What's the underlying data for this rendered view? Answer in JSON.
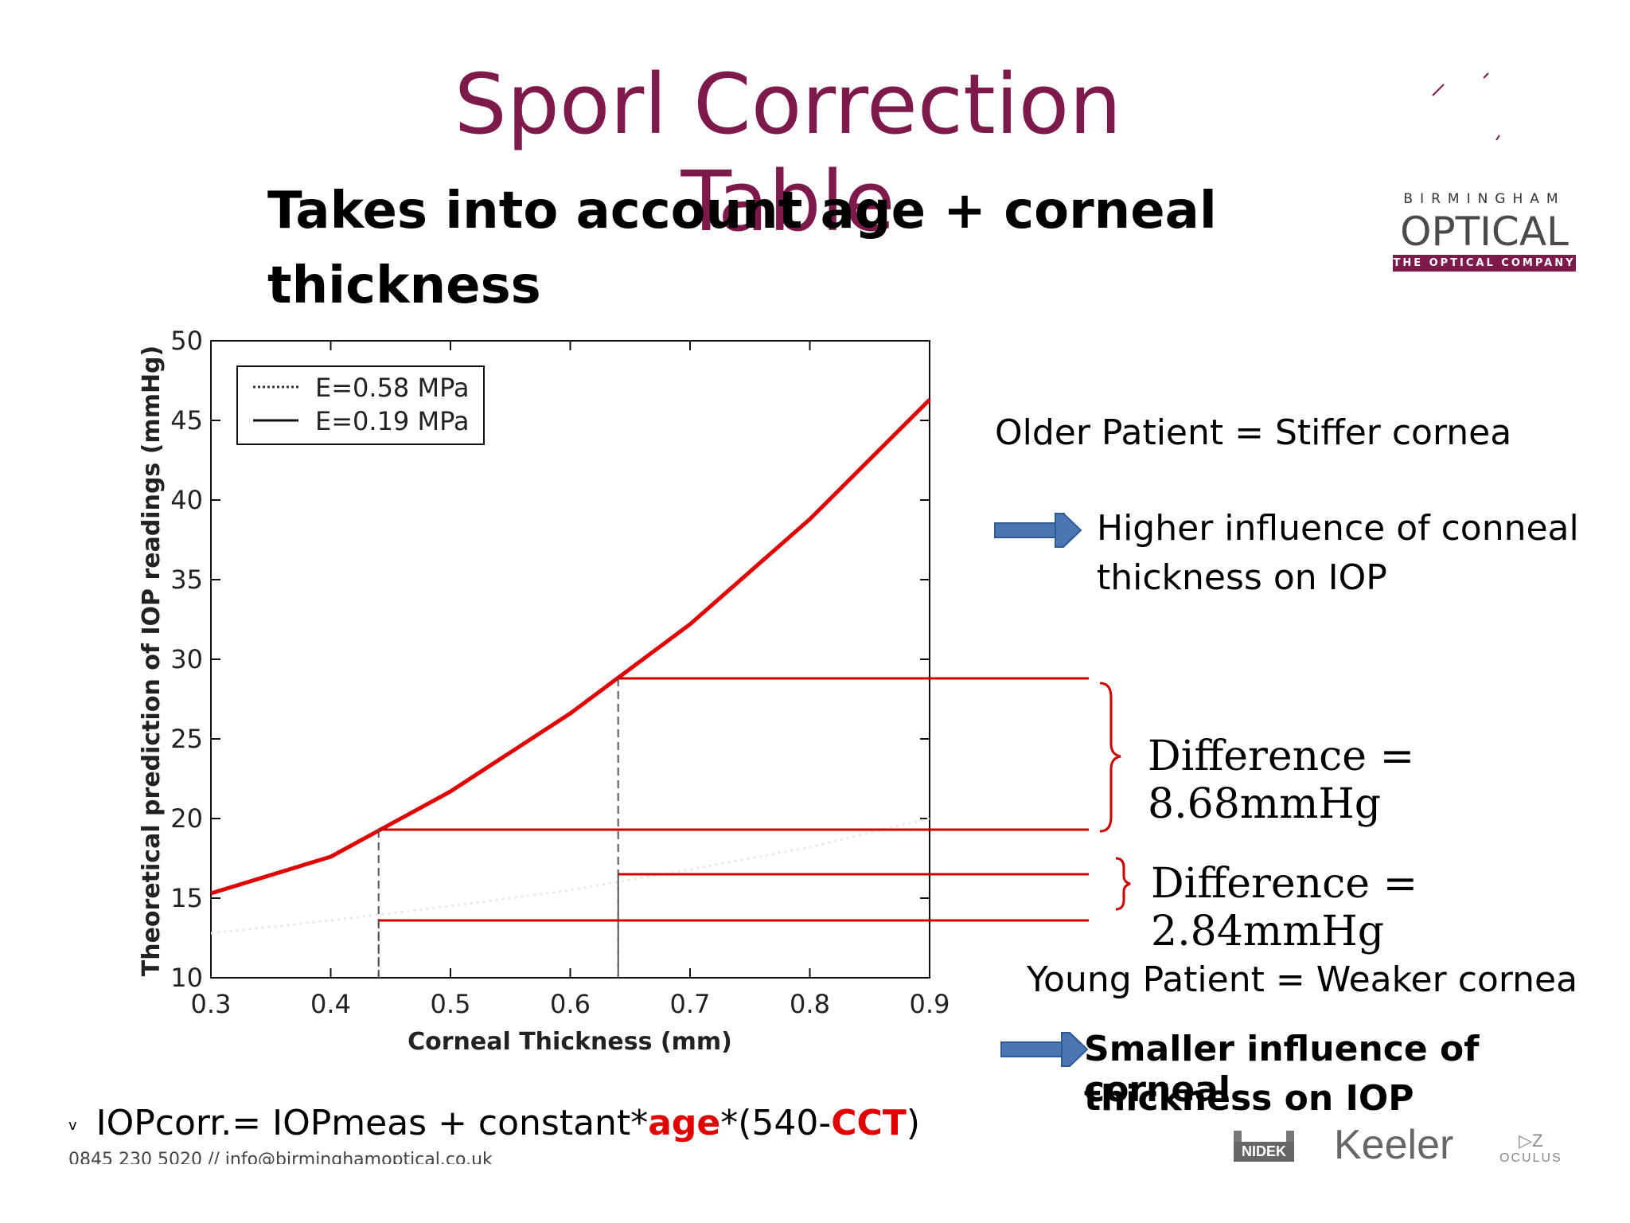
{
  "slide": {
    "title": "Sporl Correction Table",
    "subtitle_line1": "Takes into account age + corneal",
    "subtitle_line2": "thickness"
  },
  "logo": {
    "top": "BIRMINGHAM",
    "main": "OPTICAL",
    "tagline": "THE OPTICAL COMPANY"
  },
  "notes": {
    "older": "Older Patient = Stiffer cornea",
    "older_effect_line1": "Higher influence of conneal",
    "older_effect_line2": "thickness on IOP",
    "young": "Young Patient = Weaker cornea",
    "young_effect_line1": "Smaller influence of corneal",
    "young_effect_line2": "thickness  on IOP"
  },
  "differences": {
    "old": "Difference = 8.68mmHg",
    "young": "Difference = 2.84mmHg"
  },
  "formula": {
    "bullet": "v",
    "part1": "IOPcorr.= IOPmeas + constant*",
    "age": "age",
    "part2": "*(540-",
    "cct": "CCT",
    "part3": ")"
  },
  "footer": {
    "contact": "0845 230 5020 // info@birminghamoptical.co.uk",
    "brands": [
      "NIDEK",
      "Keeler",
      "OCULUS"
    ]
  },
  "colors": {
    "title": "#7d1a4b",
    "highlight": "#e00000",
    "arrow": "#4a77b4"
  },
  "chart_data": {
    "type": "line",
    "xlabel": "Corneal Thickness (mm)",
    "ylabel": "Theoretical prediction of IOP readings (mmHg)",
    "xlim": [
      0.3,
      0.9
    ],
    "ylim": [
      10,
      50
    ],
    "xticks": [
      0.3,
      0.4,
      0.5,
      0.6,
      0.7,
      0.8,
      0.9
    ],
    "yticks": [
      10,
      15,
      20,
      25,
      30,
      35,
      40,
      45,
      50
    ],
    "legend": [
      "E=0.58 MPa",
      "E=0.19 MPa"
    ],
    "legend_position": "top-left",
    "series": [
      {
        "name": "E=0.58 MPa",
        "x": [
          0.3,
          0.4,
          0.5,
          0.6,
          0.7,
          0.8,
          0.9
        ],
        "y": [
          15.3,
          17.6,
          21.7,
          26.6,
          32.2,
          38.8,
          46.3
        ]
      },
      {
        "name": "E=0.19 MPa",
        "x": [
          0.3,
          0.4,
          0.5,
          0.6,
          0.7,
          0.8,
          0.9
        ],
        "y": [
          12.8,
          13.6,
          14.5,
          15.5,
          16.8,
          18.2,
          20.0
        ]
      }
    ],
    "annotations": [
      {
        "x": 0.64,
        "y": 28.8
      },
      {
        "x": 0.44,
        "y": 19.3
      },
      {
        "x": 0.64,
        "y": 16.5
      },
      {
        "x": 0.44,
        "y": 13.6
      }
    ]
  }
}
